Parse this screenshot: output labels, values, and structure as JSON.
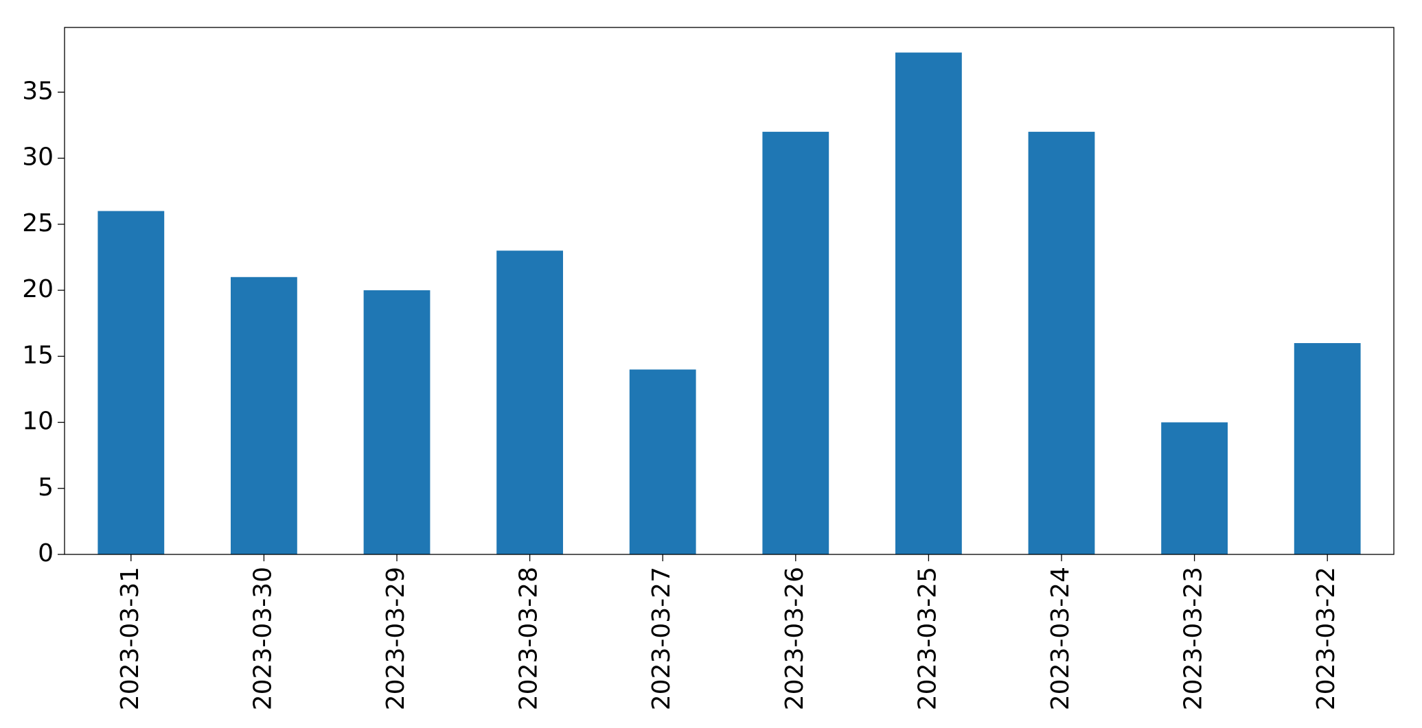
{
  "chart_data": {
    "type": "bar",
    "categories": [
      "2023-03-31",
      "2023-03-30",
      "2023-03-29",
      "2023-03-28",
      "2023-03-27",
      "2023-03-26",
      "2023-03-25",
      "2023-03-24",
      "2023-03-23",
      "2023-03-22"
    ],
    "values": [
      26,
      21,
      20,
      23,
      14,
      32,
      38,
      32,
      10,
      16
    ],
    "color": "#1f77b4",
    "ylim": [
      0,
      39.9
    ],
    "yticks": [
      0,
      5,
      10,
      15,
      20,
      25,
      30,
      35
    ],
    "grid": false
  }
}
